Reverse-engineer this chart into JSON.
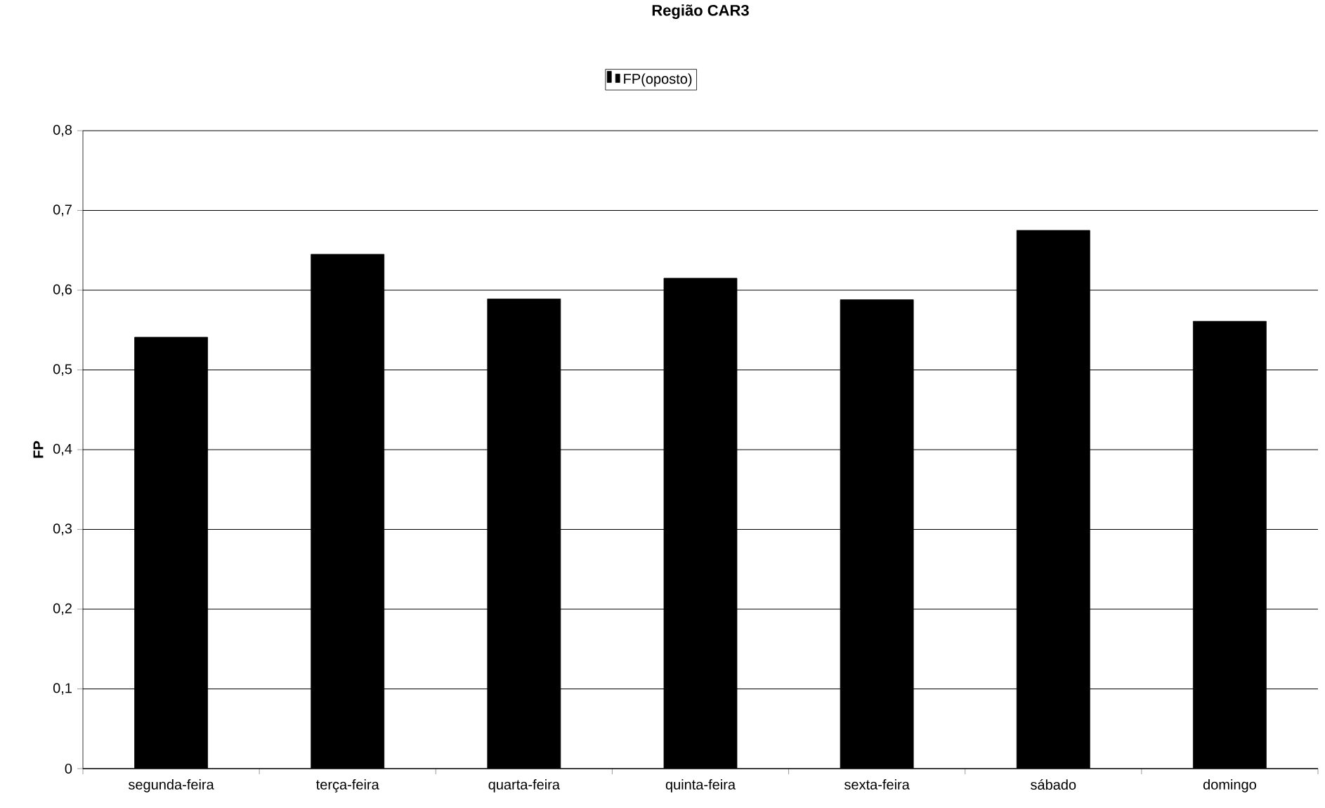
{
  "chart_data": {
    "type": "bar",
    "title": "Região CAR3",
    "ylabel": "FP",
    "categories": [
      "segunda-feira",
      "terça-feira",
      "quarta-feira",
      "quinta-feira",
      "sexta-feira",
      "sábado",
      "domingo"
    ],
    "series": [
      {
        "name": "FP(oposto)",
        "color": "#000000",
        "values": [
          0.541,
          0.645,
          0.589,
          0.615,
          0.588,
          0.675,
          0.561
        ]
      }
    ],
    "ylim": [
      0,
      0.8
    ],
    "yticks": [
      {
        "value": 0,
        "label": "0"
      },
      {
        "value": 0.1,
        "label": "0,1"
      },
      {
        "value": 0.2,
        "label": "0,2"
      },
      {
        "value": 0.3,
        "label": "0,3"
      },
      {
        "value": 0.4,
        "label": "0,4"
      },
      {
        "value": 0.5,
        "label": "0,5"
      },
      {
        "value": 0.6,
        "label": "0,6"
      },
      {
        "value": 0.7,
        "label": "0,7"
      },
      {
        "value": 0.8,
        "label": "0,8"
      }
    ],
    "grid": "y",
    "legend": "top"
  }
}
